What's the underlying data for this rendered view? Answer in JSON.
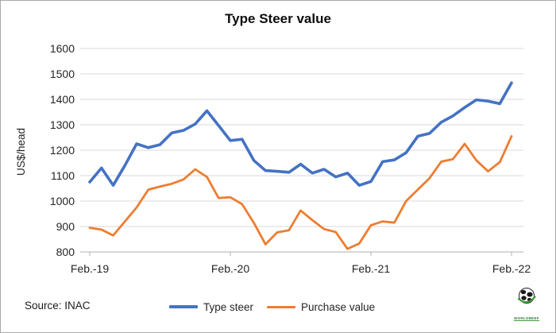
{
  "title": "Type Steer value",
  "y_axis": {
    "label": "US$/head",
    "ticks": [
      1600,
      1500,
      1400,
      1300,
      1200,
      1100,
      1000,
      900,
      800
    ]
  },
  "x_axis": {
    "tick_labels": [
      "Feb.-19",
      "Feb.-20",
      "Feb.-21",
      "Feb.-22"
    ]
  },
  "legend": {
    "items": [
      {
        "label": "Type steer",
        "color": "#4472C4"
      },
      {
        "label": "Purchase value",
        "color": "#ED7D31"
      }
    ]
  },
  "source": "Source: INAC",
  "logo": {
    "text": "WORLDBEEF",
    "icon": "globe-icon"
  },
  "colors": {
    "blue": "#4472C4",
    "orange": "#ED7D31",
    "gridline": "#D9D9D9",
    "axis": "#BFBFBF"
  },
  "chart_data": {
    "type": "line",
    "title": "Type Steer value",
    "ylabel": "US$/head",
    "ylim": [
      800,
      1600
    ],
    "ytick_step": 100,
    "grid": true,
    "legend_position": "bottom",
    "categories": [
      "Feb-19",
      "Mar-19",
      "Apr-19",
      "May-19",
      "Jun-19",
      "Jul-19",
      "Aug-19",
      "Sep-19",
      "Oct-19",
      "Nov-19",
      "Dec-19",
      "Jan-20",
      "Feb-20",
      "Mar-20",
      "Apr-20",
      "May-20",
      "Jun-20",
      "Jul-20",
      "Aug-20",
      "Sep-20",
      "Oct-20",
      "Nov-20",
      "Dec-20",
      "Jan-21",
      "Feb-21",
      "Mar-21",
      "Apr-21",
      "May-21",
      "Jun-21",
      "Jul-21",
      "Aug-21",
      "Sep-21",
      "Oct-21",
      "Nov-21",
      "Dec-21",
      "Jan-22",
      "Feb-22"
    ],
    "xticks": [
      {
        "index": 0,
        "label": "Feb.-19"
      },
      {
        "index": 12,
        "label": "Feb.-20"
      },
      {
        "index": 24,
        "label": "Feb.-21"
      },
      {
        "index": 36,
        "label": "Feb.-22"
      }
    ],
    "series": [
      {
        "name": "Type steer",
        "color": "#4472C4",
        "values": [
          1075,
          1130,
          1062,
          1140,
          1225,
          1210,
          1222,
          1268,
          1278,
          1303,
          1355,
          1297,
          1238,
          1243,
          1160,
          1120,
          1117,
          1113,
          1145,
          1110,
          1125,
          1095,
          1110,
          1062,
          1077,
          1155,
          1162,
          1190,
          1255,
          1266,
          1310,
          1335,
          1368,
          1398,
          1393,
          1383,
          1465
        ]
      },
      {
        "name": "Purchase value",
        "color": "#ED7D31",
        "values": [
          895,
          888,
          865,
          920,
          975,
          1045,
          1057,
          1068,
          1085,
          1125,
          1095,
          1012,
          1015,
          988,
          915,
          830,
          877,
          885,
          963,
          925,
          890,
          878,
          812,
          833,
          905,
          920,
          915,
          1000,
          1045,
          1090,
          1155,
          1165,
          1225,
          1160,
          1117,
          1153,
          1255
        ]
      }
    ]
  }
}
